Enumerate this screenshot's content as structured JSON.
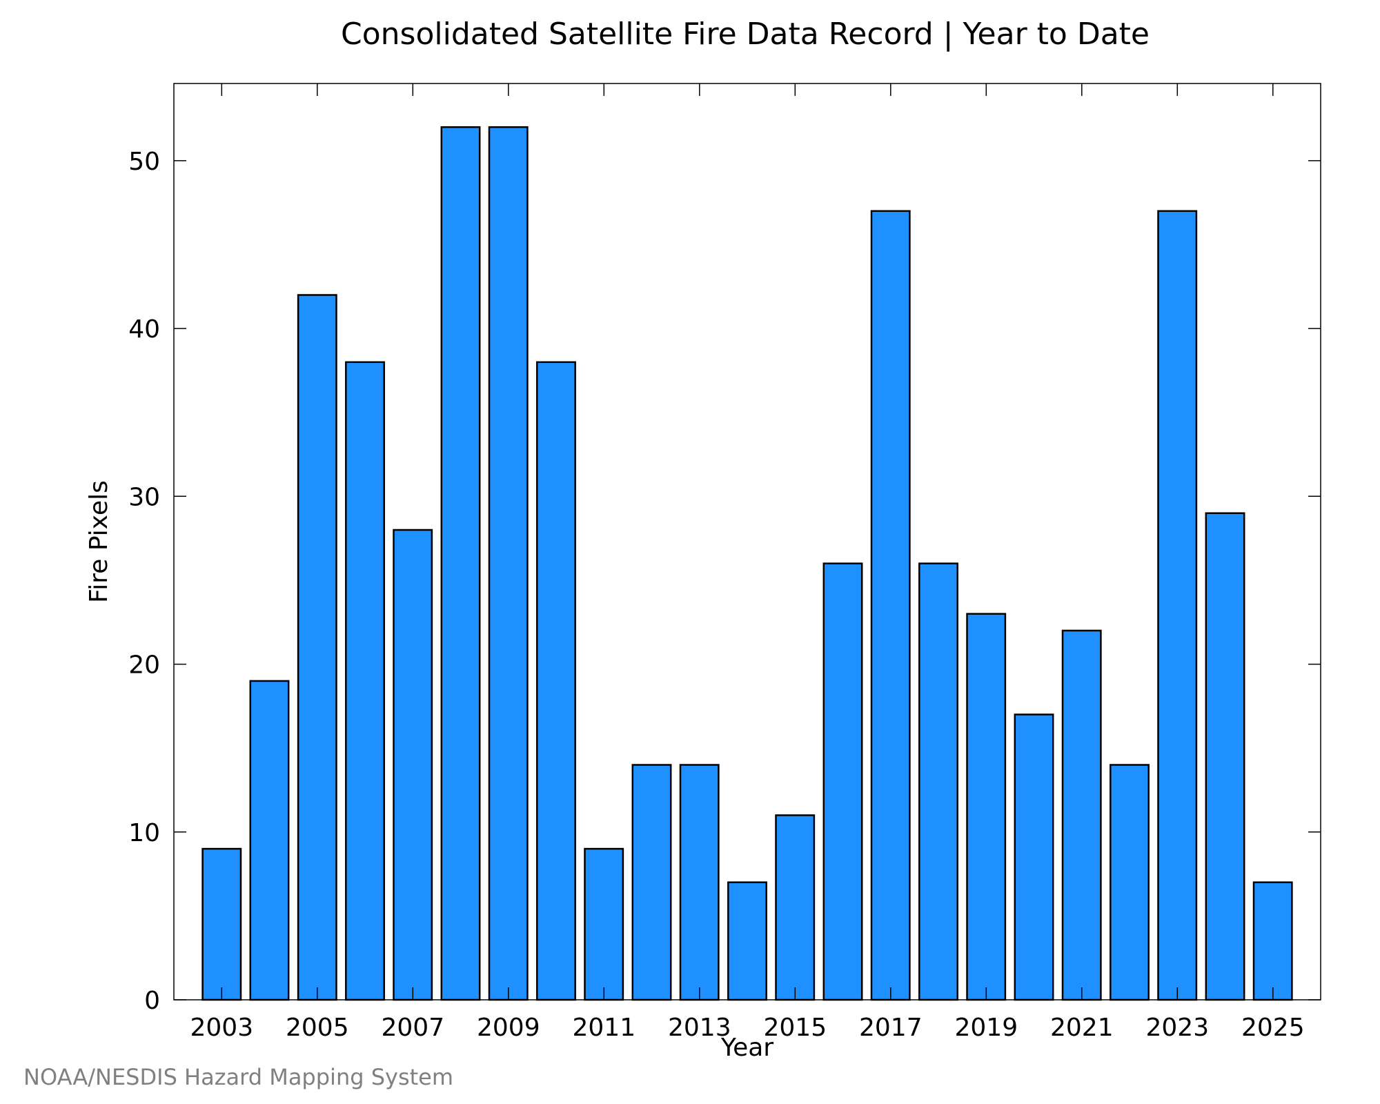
{
  "chart_data": {
    "type": "bar",
    "title": "Consolidated Satellite Fire Data Record | Year to Date",
    "xlabel": "Year",
    "ylabel": "Fire Pixels",
    "categories": [
      "2003",
      "2004",
      "2005",
      "2006",
      "2007",
      "2008",
      "2009",
      "2010",
      "2011",
      "2012",
      "2013",
      "2014",
      "2015",
      "2016",
      "2017",
      "2018",
      "2019",
      "2020",
      "2021",
      "2022",
      "2023",
      "2024",
      "2025"
    ],
    "values": [
      9,
      19,
      42,
      38,
      28,
      52,
      52,
      38,
      9,
      14,
      14,
      7,
      11,
      26,
      47,
      26,
      23,
      17,
      22,
      14,
      47,
      29,
      7
    ],
    "xticks": [
      "2003",
      "2005",
      "2007",
      "2009",
      "2011",
      "2013",
      "2015",
      "2017",
      "2019",
      "2021",
      "2023",
      "2025"
    ],
    "yticks": [
      0,
      10,
      20,
      30,
      40,
      50
    ],
    "ylim": [
      0,
      54.6
    ],
    "bar_color": "#1e90ff",
    "grid": false,
    "legend": "none"
  },
  "credit": "NOAA/NESDIS Hazard Mapping System"
}
